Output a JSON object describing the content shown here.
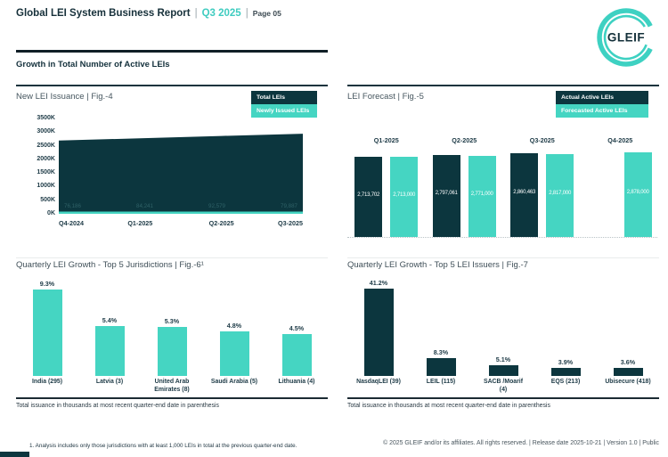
{
  "header": {
    "title": "Global LEI System Business Report",
    "sep": "|",
    "period": "Q3 2025",
    "page_label": "Page 05"
  },
  "logo": {
    "text": "GLEIF"
  },
  "section": {
    "title": "Growth in Total Number of Active LEIs"
  },
  "colors": {
    "dark": "#0c363e",
    "teal": "#45d5c2",
    "accent_text": "#3fccc0"
  },
  "chart_data": [
    {
      "type": "area",
      "title": "New LEI Issuance | Fig.-4",
      "x": [
        "Q4-2024",
        "Q1-2025",
        "Q2-2025",
        "Q3-2025"
      ],
      "y_ticks": [
        "3500K",
        "3000K",
        "2500K",
        "2000K",
        "1500K",
        "1000K",
        "500K",
        "0K"
      ],
      "ylim_thousands": [
        0,
        3500
      ],
      "legend": [
        "Total LEIs",
        "Newly Issued LEIs"
      ],
      "series": [
        {
          "name": "Total LEIs",
          "approx_values_thousands": [
            2690,
            2775,
            2858,
            2940
          ]
        },
        {
          "name": "Newly Issued LEIs",
          "approx_values_thousands": [
            76,
            84,
            93,
            80
          ],
          "labels": [
            "76,186",
            "84,241",
            "92,579",
            "79,887"
          ]
        }
      ]
    },
    {
      "type": "bar",
      "title": "LEI Forecast | Fig.-5",
      "categories": [
        "Q1-2025",
        "Q2-2025",
        "Q3-2025",
        "Q4-2025"
      ],
      "legend": [
        "Actual Active LEIs",
        "Forecasted Active LEIs"
      ],
      "series": [
        {
          "name": "Actual Active LEIs",
          "values": [
            2713702,
            2797061,
            2860463,
            null
          ]
        },
        {
          "name": "Forecasted Active LEIs",
          "values": [
            2713000,
            2771000,
            2817000,
            2878000
          ]
        }
      ]
    },
    {
      "type": "bar",
      "title": "Quarterly LEI Growth - Top 5 Jurisdictions | Fig.-6¹",
      "categories": [
        "India (295)",
        "Latvia (3)",
        "United Arab Emirates (8)",
        "Saudi Arabia (5)",
        "Lithuania (4)"
      ],
      "values": [
        9.3,
        5.4,
        5.3,
        4.8,
        4.5
      ],
      "unit": "%",
      "footnote": "Total issuance in thousands at most recent quarter-end date in parenthesis"
    },
    {
      "type": "bar",
      "title": "Quarterly LEI Growth - Top 5 LEI Issuers | Fig.-7",
      "categories": [
        "NasdaqLEI (39)",
        "LEIL (115)",
        "SACB /Moarif (4)",
        "EQS (213)",
        "Ubisecure (418)"
      ],
      "values": [
        41.2,
        8.3,
        5.1,
        3.9,
        3.6
      ],
      "unit": "%",
      "footnote": "Total issuance in thousands at most recent quarter-end date in parenthesis"
    }
  ],
  "footer": {
    "footnote": "1. Analysis includes only those jurisdictions with at least 1,000 LEIs in total at the previous quarter-end date.",
    "copyright": "© 2025 GLEIF and/or its affiliates. All rights reserved. | Release date 2025-10-21 | Version 1.0 | Public"
  }
}
